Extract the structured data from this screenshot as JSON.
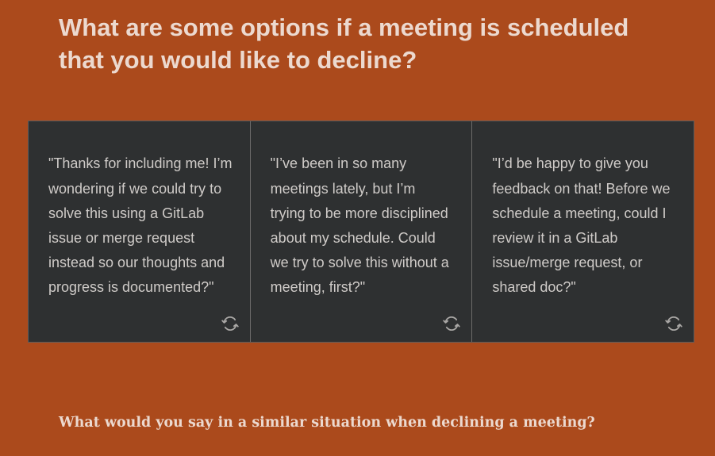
{
  "page": {
    "title": "What are some options if a meeting is scheduled that you would like to decline?",
    "prompt": "What would you say in a similar situation when declining a meeting?"
  },
  "cards": [
    {
      "text": "\"Thanks for including me! I’m wondering if we could try to solve this using a GitLab issue or merge request instead so our thoughts and progress is documented?\"",
      "icon": "flip-icon"
    },
    {
      "text": "\"I’ve been in so many meetings lately, but I’m trying to be more disciplined about my schedule. Could we try to solve this without a meeting, first?\"",
      "icon": "flip-icon"
    },
    {
      "text": "\"I’d be happy to give you feedback on that! Before we schedule a meeting, could I review it in a GitLab issue/merge request, or shared doc?\"",
      "icon": "flip-icon"
    }
  ],
  "colors": {
    "background": "#ab4a1c",
    "card_background": "#2e3031",
    "heading_text": "#ecd9cf",
    "card_text": "#cfcbc8"
  }
}
